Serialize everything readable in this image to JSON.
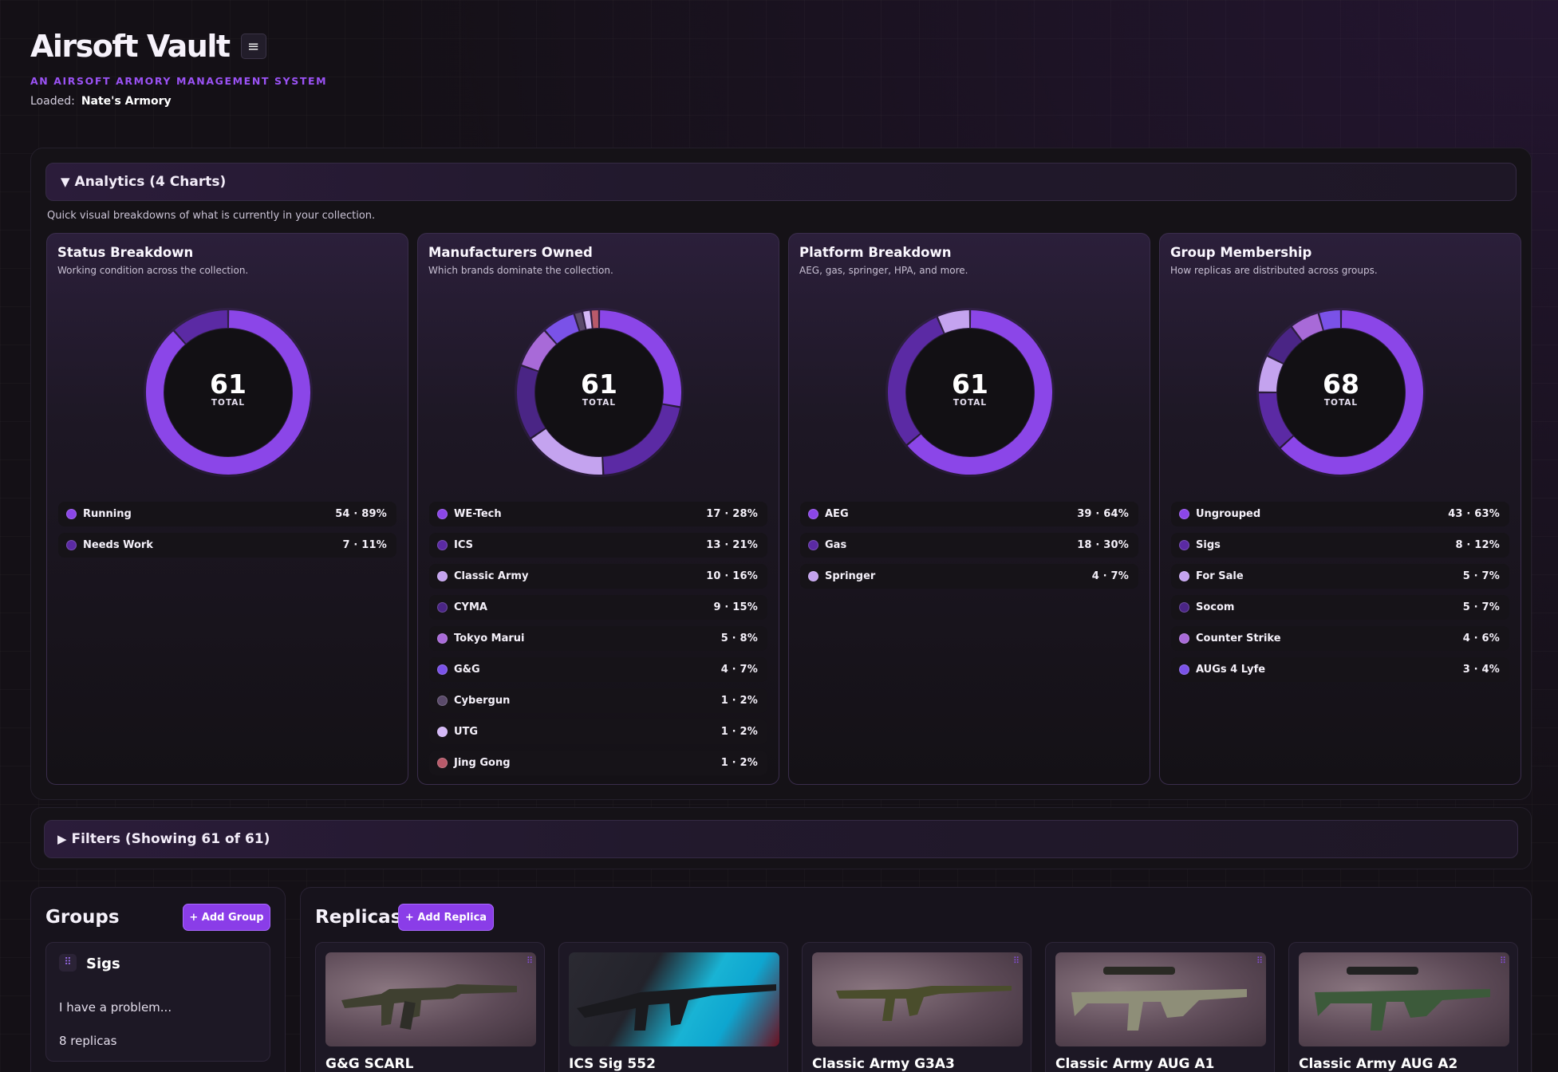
{
  "app": {
    "title": "Airsoft Vault",
    "menu_icon": "≡",
    "subtitle": "An Airsoft Armory Management System",
    "loaded_label": "Loaded:",
    "loaded_value": "Nate's Armory"
  },
  "analytics": {
    "toggle_glyph": "▼",
    "header": "Analytics (4 Charts)",
    "description": "Quick visual breakdowns of what is currently in your collection.",
    "center_label": "TOTAL",
    "charts": [
      {
        "title": "Status Breakdown",
        "subtitle": "Working condition across the collection.",
        "total": "61",
        "items": [
          {
            "name": "Running",
            "count": 54,
            "pct": "89%",
            "color": "#8b46e8"
          },
          {
            "name": "Needs Work",
            "count": 7,
            "pct": "11%",
            "color": "#5b2aa4"
          }
        ]
      },
      {
        "title": "Manufacturers Owned",
        "subtitle": "Which brands dominate the collection.",
        "total": "61",
        "items": [
          {
            "name": "WE-Tech",
            "count": 17,
            "pct": "28%",
            "color": "#8b46e8"
          },
          {
            "name": "ICS",
            "count": 13,
            "pct": "21%",
            "color": "#5b2aa4"
          },
          {
            "name": "Classic Army",
            "count": 10,
            "pct": "16%",
            "color": "#c4a3ef"
          },
          {
            "name": "CYMA",
            "count": 9,
            "pct": "15%",
            "color": "#4a2585"
          },
          {
            "name": "Tokyo Marui",
            "count": 5,
            "pct": "8%",
            "color": "#a86ad8"
          },
          {
            "name": "G&G",
            "count": 4,
            "pct": "7%",
            "color": "#7a52e8"
          },
          {
            "name": "Cybergun",
            "count": 1,
            "pct": "2%",
            "color": "#5a4a6a"
          },
          {
            "name": "UTG",
            "count": 1,
            "pct": "2%",
            "color": "#d4b8f7"
          },
          {
            "name": "Jing Gong",
            "count": 1,
            "pct": "2%",
            "color": "#b85a6a"
          }
        ]
      },
      {
        "title": "Platform Breakdown",
        "subtitle": "AEG, gas, springer, HPA, and more.",
        "total": "61",
        "items": [
          {
            "name": "AEG",
            "count": 39,
            "pct": "64%",
            "color": "#8b46e8"
          },
          {
            "name": "Gas",
            "count": 18,
            "pct": "30%",
            "color": "#5b2aa4"
          },
          {
            "name": "Springer",
            "count": 4,
            "pct": "7%",
            "color": "#c4a3ef"
          }
        ]
      },
      {
        "title": "Group Membership",
        "subtitle": "How replicas are distributed across groups.",
        "total": "68",
        "items": [
          {
            "name": "Ungrouped",
            "count": 43,
            "pct": "63%",
            "color": "#8b46e8"
          },
          {
            "name": "Sigs",
            "count": 8,
            "pct": "12%",
            "color": "#5b2aa4"
          },
          {
            "name": "For Sale",
            "count": 5,
            "pct": "7%",
            "color": "#c4a3ef"
          },
          {
            "name": "Socom",
            "count": 5,
            "pct": "7%",
            "color": "#4a2585"
          },
          {
            "name": "Counter Strike",
            "count": 4,
            "pct": "6%",
            "color": "#a86ad8"
          },
          {
            "name": "AUGs 4 Lyfe",
            "count": 3,
            "pct": "4%",
            "color": "#7a52e8"
          }
        ]
      }
    ]
  },
  "filters": {
    "toggle_glyph": "▶",
    "header": "Filters (Showing 61 of 61)"
  },
  "groups": {
    "title": "Groups",
    "add_label": "+ Add Group",
    "items": [
      {
        "name": "Sigs",
        "description": "I have a problem...",
        "count_text": "8 replicas"
      }
    ]
  },
  "replicas": {
    "title": "Replicas",
    "add_label": "+ Add Replica",
    "items": [
      {
        "name": "G&G SCARL"
      },
      {
        "name": "ICS Sig 552"
      },
      {
        "name": "Classic Army G3A3"
      },
      {
        "name": "Classic Army AUG A1"
      },
      {
        "name": "Classic Army AUG A2"
      }
    ]
  }
}
